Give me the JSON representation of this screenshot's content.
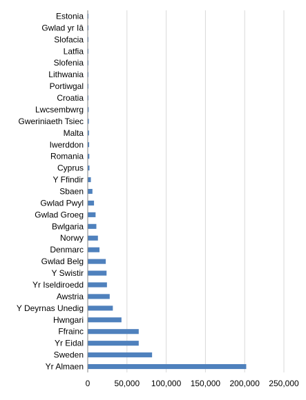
{
  "chart_data": {
    "type": "bar",
    "orientation": "horizontal",
    "categories": [
      "Estonia",
      "Gwlad yr Iâ",
      "Slofacia",
      "Latfia",
      "Slofenia",
      "Lithwania",
      "Portiwgal",
      "Croatia",
      "Lwcsembwrg",
      "Gweriniaeth Tsiec",
      "Malta",
      "Iwerddon",
      "Romania",
      "Cyprus",
      "Y Ffindir",
      "Sbaen",
      "Gwlad Pwyl",
      "Gwlad Groeg",
      "Bwlgaria",
      "Norwy",
      "Denmarc",
      "Gwlad Belg",
      "Y Swistir",
      "Yr Iseldiroedd",
      "Awstria",
      "Y Deyrnas Unedig",
      "Hwngari",
      "Ffrainc",
      "Yr Eidal",
      "Sweden",
      "Yr Almaen"
    ],
    "values": [
      200,
      300,
      400,
      500,
      600,
      700,
      800,
      900,
      1200,
      1400,
      1600,
      1800,
      2000,
      2200,
      4000,
      6000,
      8000,
      10000,
      11000,
      13000,
      15000,
      23000,
      24000,
      24500,
      28000,
      32000,
      43000,
      65000,
      65000,
      82000,
      202000
    ],
    "xlim": [
      0,
      250000
    ],
    "xticks": [
      0,
      50000,
      100000,
      150000,
      200000,
      250000
    ],
    "xtick_labels": [
      "0",
      "50,000",
      "100,000",
      "150,000",
      "200,000",
      "250,000"
    ],
    "grid": "vertical",
    "bar_color": "#4F81BD",
    "grid_color": "#D9D9D9",
    "axis_color": "#868686",
    "title": "",
    "xlabel": "",
    "ylabel": ""
  }
}
